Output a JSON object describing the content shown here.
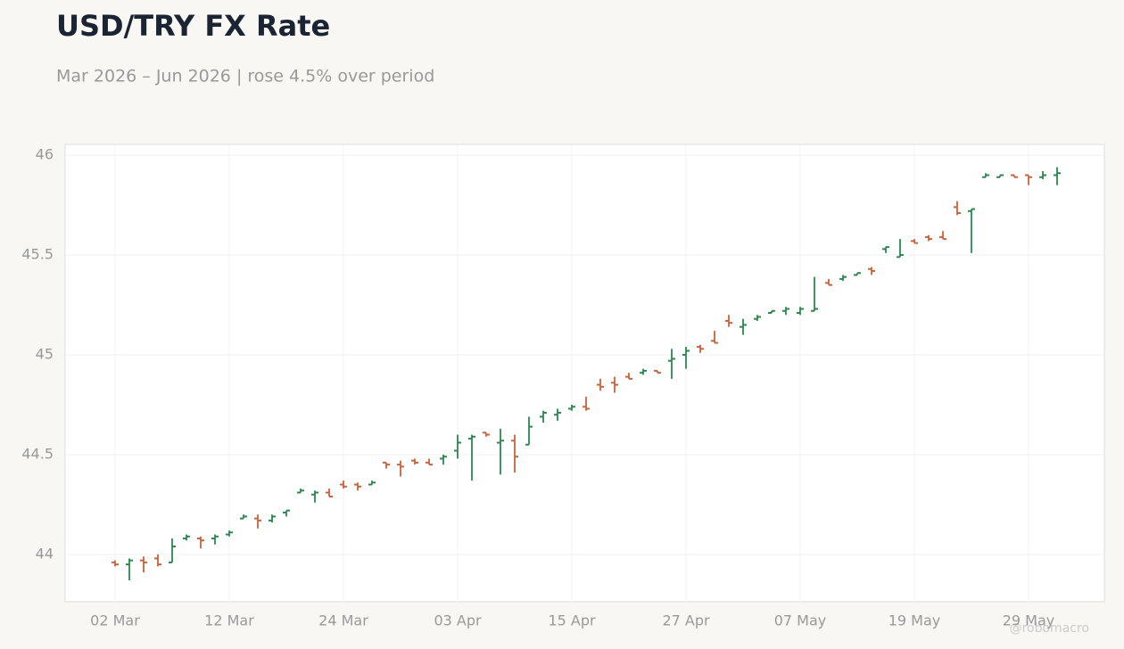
{
  "chart_data": {
    "type": "ohlc",
    "title": "USD/TRY FX Rate",
    "subtitle": "Mar 2026 – Jun 2026 | rose 4.5% over period",
    "watermark": "@robomacro",
    "categories": [
      "02 Mar",
      null,
      null,
      null,
      null,
      null,
      null,
      null,
      "12 Mar",
      null,
      null,
      null,
      null,
      null,
      null,
      null,
      "24 Mar",
      null,
      null,
      null,
      null,
      null,
      null,
      null,
      "03 Apr",
      null,
      null,
      null,
      null,
      null,
      null,
      null,
      "15 Apr",
      null,
      null,
      null,
      null,
      null,
      null,
      null,
      "27 Apr",
      null,
      null,
      null,
      null,
      null,
      null,
      null,
      "07 May",
      null,
      null,
      null,
      null,
      null,
      null,
      null,
      "19 May",
      null,
      null,
      null,
      null,
      null,
      null,
      null,
      "29 May",
      null,
      null
    ],
    "open": [
      43.96,
      43.95,
      43.97,
      43.98,
      43.96,
      44.08,
      44.08,
      44.08,
      44.1,
      44.18,
      44.18,
      44.17,
      44.21,
      44.31,
      44.3,
      44.31,
      44.35,
      44.35,
      44.35,
      44.46,
      44.45,
      44.47,
      44.46,
      44.48,
      44.52,
      44.58,
      44.61,
      44.56,
      44.57,
      44.55,
      44.69,
      44.7,
      44.73,
      44.74,
      44.85,
      44.86,
      44.89,
      44.91,
      44.92,
      44.97,
      45.0,
      45.04,
      45.07,
      45.17,
      45.14,
      45.18,
      45.21,
      45.22,
      45.21,
      45.22,
      45.36,
      45.38,
      45.4,
      45.43,
      45.53,
      45.49,
      45.57,
      45.59,
      45.59,
      45.74,
      45.72,
      45.89,
      45.89,
      45.9,
      45.9,
      45.89,
      45.9
    ],
    "high": [
      43.97,
      43.98,
      43.99,
      44.0,
      44.08,
      44.1,
      44.09,
      44.1,
      44.12,
      44.2,
      44.2,
      44.2,
      44.22,
      44.33,
      44.32,
      44.33,
      44.37,
      44.36,
      44.37,
      44.46,
      44.47,
      44.48,
      44.48,
      44.5,
      44.6,
      44.6,
      44.61,
      44.63,
      44.6,
      44.69,
      44.72,
      44.73,
      44.75,
      44.79,
      44.88,
      44.89,
      44.91,
      44.93,
      44.92,
      45.03,
      45.04,
      45.05,
      45.12,
      45.2,
      45.18,
      45.2,
      45.22,
      45.24,
      45.24,
      45.39,
      45.38,
      45.4,
      45.41,
      45.44,
      45.54,
      45.58,
      45.58,
      45.6,
      45.62,
      45.77,
      45.73,
      45.91,
      45.9,
      45.9,
      45.9,
      45.92,
      45.94
    ],
    "low": [
      43.94,
      43.87,
      43.91,
      43.94,
      43.96,
      44.07,
      44.03,
      44.05,
      44.09,
      44.18,
      44.13,
      44.16,
      44.19,
      44.31,
      44.26,
      44.29,
      44.33,
      44.32,
      44.35,
      44.43,
      44.39,
      44.45,
      44.45,
      44.45,
      44.48,
      44.37,
      44.59,
      44.4,
      44.41,
      44.55,
      44.66,
      44.67,
      44.72,
      44.72,
      44.82,
      44.81,
      44.88,
      44.9,
      44.91,
      44.88,
      44.93,
      45.01,
      45.06,
      45.14,
      45.1,
      45.17,
      45.21,
      45.2,
      45.2,
      45.22,
      45.35,
      45.37,
      45.4,
      45.4,
      45.51,
      45.49,
      45.56,
      45.57,
      45.58,
      45.7,
      45.51,
      45.89,
      45.89,
      45.89,
      45.85,
      45.88,
      45.85
    ],
    "close": [
      43.95,
      43.97,
      43.96,
      43.95,
      44.04,
      44.09,
      44.07,
      44.09,
      44.11,
      44.19,
      44.17,
      44.19,
      44.22,
      44.32,
      44.31,
      44.29,
      44.34,
      44.34,
      44.36,
      44.45,
      44.44,
      44.46,
      44.45,
      44.49,
      44.56,
      44.59,
      44.6,
      44.57,
      44.49,
      44.64,
      44.71,
      44.71,
      44.74,
      44.73,
      44.84,
      44.85,
      44.88,
      44.92,
      44.91,
      44.98,
      45.02,
      45.03,
      45.06,
      45.16,
      45.15,
      45.19,
      45.22,
      45.23,
      45.23,
      45.23,
      45.35,
      45.39,
      45.41,
      45.42,
      45.54,
      45.5,
      45.56,
      45.58,
      45.58,
      45.71,
      45.73,
      45.9,
      45.9,
      45.89,
      45.89,
      45.9,
      45.91
    ],
    "up_color": "#2e8651",
    "down_color": "#c8623f",
    "ylim": [
      43.763,
      46.054
    ],
    "yticks": [
      44,
      44.5,
      45,
      45.5,
      46
    ],
    "grid": true
  }
}
